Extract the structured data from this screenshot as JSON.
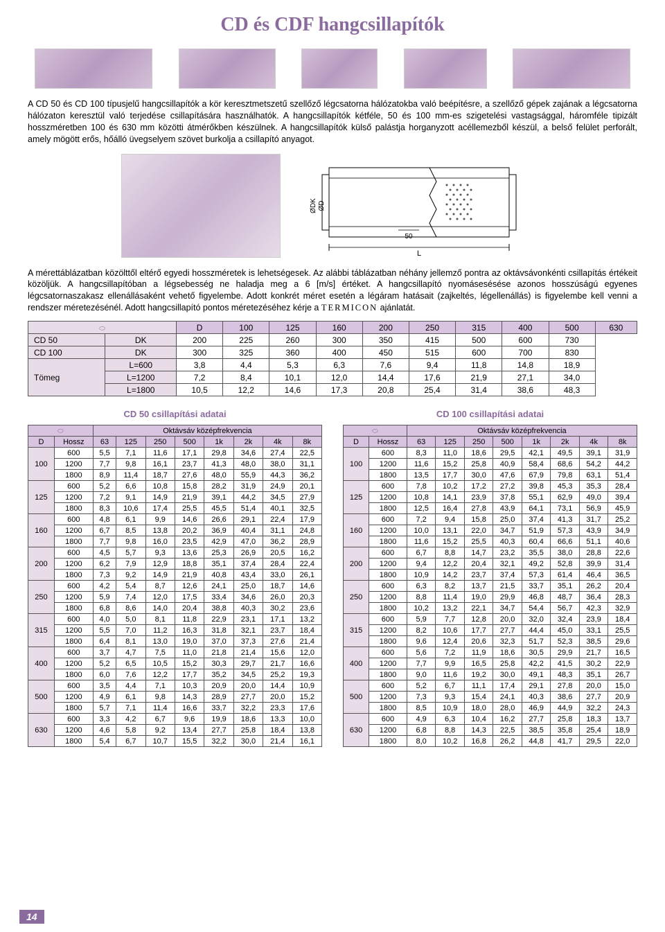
{
  "title": "CD és CDF hangcsillapítók",
  "para1": "A CD 50 és CD 100 típusjelű hangcsillapítók a kör keresztmetszetű szellőző légcsatorna hálózatokba való beépítésre, a szellőző gépek zajának a légcsatorna hálózaton keresztül való terjedése csillapítására használhatók. A hangcsillapítók kétféle, 50 és 100 mm-es szigetelési vastagsággal, háromféle tipizált hosszméretben 100 és 630 mm közötti átmérőkben készülnek. A hangcsillapítók külső palástja horganyzott acéllemezből készül, a belső felület perforált, amely mögött erős, hőálló üvegselyem szövet burkolja a csillapító anyagot.",
  "para2_a": "A mérettáblázatban közölttől eltérő egyedi hosszméretek is lehetségesek. Az alábbi táblázatban néhány jellemző pontra az oktávsávonkénti csillapítás értékeit közöljük. A hangcsillapítóban a légsebesség ne haladja meg a 6 [m/s] értéket. A hangcsillapító nyomásesésése azonos hosszúságú egyenes légcsatornaszakasz ellenállásaként vehető figyelembe. Adott konkrét méret esetén a légáram hatásait (zajkeltés, légellenállás) is figyelembe kell venni a rendszer méretezésénél. Adott hangcsillapító pontos méretezéséhez kérje a ",
  "para2_b": " ajánlatát.",
  "termicon": "TERMICON",
  "diagram": {
    "dk_label": "ØDK",
    "d_label": "ØD",
    "l_label": "L",
    "fifty": "50"
  },
  "main_table": {
    "col_headers": [
      "",
      "",
      "D",
      "100",
      "125",
      "160",
      "200",
      "250",
      "315",
      "400",
      "500",
      "630"
    ],
    "rows": [
      [
        "CD 50",
        "DK",
        "200",
        "225",
        "260",
        "300",
        "350",
        "415",
        "500",
        "600",
        "730"
      ],
      [
        "CD 100",
        "DK",
        "300",
        "325",
        "360",
        "400",
        "450",
        "515",
        "600",
        "700",
        "830"
      ],
      [
        "",
        "L=600",
        "3,8",
        "4,4",
        "5,3",
        "6,3",
        "7,6",
        "9,4",
        "11,8",
        "14,8",
        "18,9"
      ],
      [
        "Tömeg",
        "L=1200",
        "7,2",
        "8,4",
        "10,1",
        "12,0",
        "14,4",
        "17,6",
        "21,9",
        "27,1",
        "34,0"
      ],
      [
        "",
        "L=1800",
        "10,5",
        "12,2",
        "14,6",
        "17,3",
        "20,8",
        "25,4",
        "31,4",
        "38,6",
        "48,3"
      ]
    ]
  },
  "sub1": "CD 50 csillapítási adatai",
  "sub2": "CD 100 csillapítási adatai",
  "oct_header": "Oktávsáv középfrekvencia",
  "freq_cols": [
    "D",
    "Hossz",
    "63",
    "125",
    "250",
    "500",
    "1k",
    "2k",
    "4k",
    "8k"
  ],
  "d_values": [
    "100",
    "125",
    "160",
    "200",
    "250",
    "315",
    "400",
    "500",
    "630"
  ],
  "h_values": [
    "600",
    "1200",
    "1800"
  ],
  "cd50_data": [
    [
      [
        "5,5",
        "7,1",
        "11,6",
        "17,1",
        "29,8",
        "34,6",
        "27,4",
        "22,5"
      ],
      [
        "7,7",
        "9,8",
        "16,1",
        "23,7",
        "41,3",
        "48,0",
        "38,0",
        "31,1"
      ],
      [
        "8,9",
        "11,4",
        "18,7",
        "27,6",
        "48,0",
        "55,9",
        "44,3",
        "36,2"
      ]
    ],
    [
      [
        "5,2",
        "6,6",
        "10,8",
        "15,8",
        "28,2",
        "31,9",
        "24,9",
        "20,1"
      ],
      [
        "7,2",
        "9,1",
        "14,9",
        "21,9",
        "39,1",
        "44,2",
        "34,5",
        "27,9"
      ],
      [
        "8,3",
        "10,6",
        "17,4",
        "25,5",
        "45,5",
        "51,4",
        "40,1",
        "32,5"
      ]
    ],
    [
      [
        "4,8",
        "6,1",
        "9,9",
        "14,6",
        "26,6",
        "29,1",
        "22,4",
        "17,9"
      ],
      [
        "6,7",
        "8,5",
        "13,8",
        "20,2",
        "36,9",
        "40,4",
        "31,1",
        "24,8"
      ],
      [
        "7,7",
        "9,8",
        "16,0",
        "23,5",
        "42,9",
        "47,0",
        "36,2",
        "28,9"
      ]
    ],
    [
      [
        "4,5",
        "5,7",
        "9,3",
        "13,6",
        "25,3",
        "26,9",
        "20,5",
        "16,2"
      ],
      [
        "6,2",
        "7,9",
        "12,9",
        "18,8",
        "35,1",
        "37,4",
        "28,4",
        "22,4"
      ],
      [
        "7,3",
        "9,2",
        "14,9",
        "21,9",
        "40,8",
        "43,4",
        "33,0",
        "26,1"
      ]
    ],
    [
      [
        "4,2",
        "5,4",
        "8,7",
        "12,6",
        "24,1",
        "25,0",
        "18,7",
        "14,6"
      ],
      [
        "5,9",
        "7,4",
        "12,0",
        "17,5",
        "33,4",
        "34,6",
        "26,0",
        "20,3"
      ],
      [
        "6,8",
        "8,6",
        "14,0",
        "20,4",
        "38,8",
        "40,3",
        "30,2",
        "23,6"
      ]
    ],
    [
      [
        "4,0",
        "5,0",
        "8,1",
        "11,8",
        "22,9",
        "23,1",
        "17,1",
        "13,2"
      ],
      [
        "5,5",
        "7,0",
        "11,2",
        "16,3",
        "31,8",
        "32,1",
        "23,7",
        "18,4"
      ],
      [
        "6,4",
        "8,1",
        "13,0",
        "19,0",
        "37,0",
        "37,3",
        "27,6",
        "21,4"
      ]
    ],
    [
      [
        "3,7",
        "4,7",
        "7,5",
        "11,0",
        "21,8",
        "21,4",
        "15,6",
        "12,0"
      ],
      [
        "5,2",
        "6,5",
        "10,5",
        "15,2",
        "30,3",
        "29,7",
        "21,7",
        "16,6"
      ],
      [
        "6,0",
        "7,6",
        "12,2",
        "17,7",
        "35,2",
        "34,5",
        "25,2",
        "19,3"
      ]
    ],
    [
      [
        "3,5",
        "4,4",
        "7,1",
        "10,3",
        "20,9",
        "20,0",
        "14,4",
        "10,9"
      ],
      [
        "4,9",
        "6,1",
        "9,8",
        "14,3",
        "28,9",
        "27,7",
        "20,0",
        "15,2"
      ],
      [
        "5,7",
        "7,1",
        "11,4",
        "16,6",
        "33,7",
        "32,2",
        "23,3",
        "17,6"
      ]
    ],
    [
      [
        "3,3",
        "4,2",
        "6,7",
        "9,6",
        "19,9",
        "18,6",
        "13,3",
        "10,0"
      ],
      [
        "4,6",
        "5,8",
        "9,2",
        "13,4",
        "27,7",
        "25,8",
        "18,4",
        "13,8"
      ],
      [
        "5,4",
        "6,7",
        "10,7",
        "15,5",
        "32,2",
        "30,0",
        "21,4",
        "16,1"
      ]
    ]
  ],
  "cd100_data": [
    [
      [
        "8,3",
        "11,0",
        "18,6",
        "29,5",
        "42,1",
        "49,5",
        "39,1",
        "31,9"
      ],
      [
        "11,6",
        "15,2",
        "25,8",
        "40,9",
        "58,4",
        "68,6",
        "54,2",
        "44,2"
      ],
      [
        "13,5",
        "17,7",
        "30,0",
        "47,6",
        "67,9",
        "79,8",
        "63,1",
        "51,4"
      ]
    ],
    [
      [
        "7,8",
        "10,2",
        "17,2",
        "27,2",
        "39,8",
        "45,3",
        "35,3",
        "28,4"
      ],
      [
        "10,8",
        "14,1",
        "23,9",
        "37,8",
        "55,1",
        "62,9",
        "49,0",
        "39,4"
      ],
      [
        "12,5",
        "16,4",
        "27,8",
        "43,9",
        "64,1",
        "73,1",
        "56,9",
        "45,9"
      ]
    ],
    [
      [
        "7,2",
        "9,4",
        "15,8",
        "25,0",
        "37,4",
        "41,3",
        "31,7",
        "25,2"
      ],
      [
        "10,0",
        "13,1",
        "22,0",
        "34,7",
        "51,9",
        "57,3",
        "43,9",
        "34,9"
      ],
      [
        "11,6",
        "15,2",
        "25,5",
        "40,3",
        "60,4",
        "66,6",
        "51,1",
        "40,6"
      ]
    ],
    [
      [
        "6,7",
        "8,8",
        "14,7",
        "23,2",
        "35,5",
        "38,0",
        "28,8",
        "22,6"
      ],
      [
        "9,4",
        "12,2",
        "20,4",
        "32,1",
        "49,2",
        "52,8",
        "39,9",
        "31,4"
      ],
      [
        "10,9",
        "14,2",
        "23,7",
        "37,4",
        "57,3",
        "61,4",
        "46,4",
        "36,5"
      ]
    ],
    [
      [
        "6,3",
        "8,2",
        "13,7",
        "21,5",
        "33,7",
        "35,1",
        "26,2",
        "20,4"
      ],
      [
        "8,8",
        "11,4",
        "19,0",
        "29,9",
        "46,8",
        "48,7",
        "36,4",
        "28,3"
      ],
      [
        "10,2",
        "13,2",
        "22,1",
        "34,7",
        "54,4",
        "56,7",
        "42,3",
        "32,9"
      ]
    ],
    [
      [
        "5,9",
        "7,7",
        "12,8",
        "20,0",
        "32,0",
        "32,4",
        "23,9",
        "18,4"
      ],
      [
        "8,2",
        "10,6",
        "17,7",
        "27,7",
        "44,4",
        "45,0",
        "33,1",
        "25,5"
      ],
      [
        "9,6",
        "12,4",
        "20,6",
        "32,3",
        "51,7",
        "52,3",
        "38,5",
        "29,6"
      ]
    ],
    [
      [
        "5,6",
        "7,2",
        "11,9",
        "18,6",
        "30,5",
        "29,9",
        "21,7",
        "16,5"
      ],
      [
        "7,7",
        "9,9",
        "16,5",
        "25,8",
        "42,2",
        "41,5",
        "30,2",
        "22,9"
      ],
      [
        "9,0",
        "11,6",
        "19,2",
        "30,0",
        "49,1",
        "48,3",
        "35,1",
        "26,7"
      ]
    ],
    [
      [
        "5,2",
        "6,7",
        "11,1",
        "17,4",
        "29,1",
        "27,8",
        "20,0",
        "15,0"
      ],
      [
        "7,3",
        "9,3",
        "15,4",
        "24,1",
        "40,3",
        "38,6",
        "27,7",
        "20,9"
      ],
      [
        "8,5",
        "10,9",
        "18,0",
        "28,0",
        "46,9",
        "44,9",
        "32,2",
        "24,3"
      ]
    ],
    [
      [
        "4,9",
        "6,3",
        "10,4",
        "16,2",
        "27,7",
        "25,8",
        "18,3",
        "13,7"
      ],
      [
        "6,8",
        "8,8",
        "14,3",
        "22,5",
        "38,5",
        "35,8",
        "25,4",
        "18,9"
      ],
      [
        "8,0",
        "10,2",
        "16,8",
        "26,2",
        "44,8",
        "41,7",
        "29,5",
        "22,0"
      ]
    ]
  ],
  "page_num": "14",
  "colors": {
    "brand": "#8b6a9e",
    "light_purple": "#d8c4e0",
    "lighter_purple": "#e8dce8",
    "border": "#555555",
    "text": "#000000",
    "bg": "#ffffff"
  }
}
